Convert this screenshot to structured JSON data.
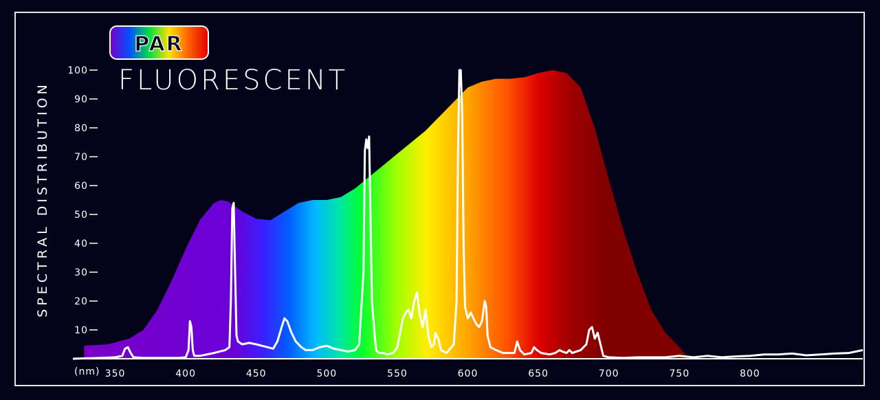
{
  "chart_data": {
    "type": "area",
    "badge": "PAR",
    "title": "FLUORESCENT",
    "ylabel": "SPECTRAL DISTRIBUTION",
    "xunit_label": "(nm)",
    "xlim": [
      320,
      880
    ],
    "ylim": [
      0,
      100
    ],
    "x_ticks": [
      350,
      400,
      450,
      500,
      550,
      600,
      650,
      700,
      750,
      800
    ],
    "y_ticks": [
      10,
      20,
      30,
      40,
      50,
      60,
      70,
      80,
      90,
      100
    ],
    "series": [
      {
        "kind": "area",
        "points": [
          [
            328,
            4.5
          ],
          [
            345,
            5
          ],
          [
            360,
            7
          ],
          [
            370,
            10
          ],
          [
            380,
            17
          ],
          [
            390,
            27
          ],
          [
            400,
            38
          ],
          [
            410,
            48
          ],
          [
            420,
            54
          ],
          [
            425,
            55
          ],
          [
            430,
            54.5
          ],
          [
            440,
            51
          ],
          [
            450,
            48.5
          ],
          [
            460,
            48
          ],
          [
            470,
            51
          ],
          [
            480,
            54
          ],
          [
            490,
            55
          ],
          [
            500,
            55
          ],
          [
            510,
            56
          ],
          [
            520,
            59
          ],
          [
            530,
            63
          ],
          [
            540,
            67
          ],
          [
            550,
            71
          ],
          [
            560,
            75
          ],
          [
            570,
            79
          ],
          [
            580,
            84
          ],
          [
            590,
            89
          ],
          [
            600,
            94
          ],
          [
            610,
            96
          ],
          [
            620,
            97
          ],
          [
            630,
            97
          ],
          [
            640,
            97.5
          ],
          [
            650,
            99
          ],
          [
            660,
            100
          ],
          [
            670,
            99
          ],
          [
            680,
            94
          ],
          [
            690,
            80
          ],
          [
            700,
            62
          ],
          [
            710,
            45
          ],
          [
            720,
            30
          ],
          [
            730,
            17
          ],
          [
            740,
            9
          ],
          [
            750,
            4
          ],
          [
            755,
            1
          ],
          [
            760,
            0
          ]
        ]
      },
      {
        "kind": "line",
        "points": [
          [
            320,
            0
          ],
          [
            340,
            0.3
          ],
          [
            350,
            0.5
          ],
          [
            355,
            1
          ],
          [
            357,
            3.5
          ],
          [
            359,
            4
          ],
          [
            361,
            2
          ],
          [
            363,
            0.5
          ],
          [
            370,
            0.3
          ],
          [
            395,
            0.3
          ],
          [
            400,
            0.5
          ],
          [
            402,
            3
          ],
          [
            403,
            13
          ],
          [
            404,
            11
          ],
          [
            405,
            3
          ],
          [
            406,
            1
          ],
          [
            410,
            1
          ],
          [
            420,
            2
          ],
          [
            428,
            3
          ],
          [
            431,
            4
          ],
          [
            432,
            20
          ],
          [
            433,
            52
          ],
          [
            434,
            54
          ],
          [
            435,
            30
          ],
          [
            436,
            8
          ],
          [
            437,
            6
          ],
          [
            440,
            5
          ],
          [
            445,
            5.5
          ],
          [
            450,
            5
          ],
          [
            458,
            4
          ],
          [
            462,
            3.5
          ],
          [
            465,
            6
          ],
          [
            468,
            11
          ],
          [
            470,
            14
          ],
          [
            472,
            13
          ],
          [
            475,
            9
          ],
          [
            478,
            6
          ],
          [
            482,
            4
          ],
          [
            485,
            3
          ],
          [
            490,
            3
          ],
          [
            495,
            4
          ],
          [
            500,
            4.5
          ],
          [
            505,
            3.5
          ],
          [
            510,
            3
          ],
          [
            515,
            2.5
          ],
          [
            520,
            3
          ],
          [
            523,
            5
          ],
          [
            526,
            30
          ],
          [
            527,
            72
          ],
          [
            528,
            76
          ],
          [
            529,
            73
          ],
          [
            530,
            77
          ],
          [
            531,
            50
          ],
          [
            532,
            20
          ],
          [
            533,
            14
          ],
          [
            534,
            8
          ],
          [
            535,
            3
          ],
          [
            537,
            2
          ],
          [
            540,
            2
          ],
          [
            543,
            1.5
          ],
          [
            547,
            2
          ],
          [
            550,
            4
          ],
          [
            552,
            9
          ],
          [
            554,
            14
          ],
          [
            556,
            16
          ],
          [
            558,
            17
          ],
          [
            560,
            14
          ],
          [
            562,
            20
          ],
          [
            564,
            23
          ],
          [
            566,
            15
          ],
          [
            568,
            11
          ],
          [
            570,
            17
          ],
          [
            572,
            8
          ],
          [
            574,
            4
          ],
          [
            576,
            5
          ],
          [
            577,
            9
          ],
          [
            579,
            7
          ],
          [
            581,
            3
          ],
          [
            585,
            2
          ],
          [
            590,
            5
          ],
          [
            592,
            20
          ],
          [
            593,
            70
          ],
          [
            594,
            100
          ],
          [
            595,
            100
          ],
          [
            596,
            85
          ],
          [
            597,
            40
          ],
          [
            598,
            18
          ],
          [
            600,
            14
          ],
          [
            602,
            16
          ],
          [
            604,
            14
          ],
          [
            606,
            12
          ],
          [
            608,
            11
          ],
          [
            610,
            13
          ],
          [
            612,
            20
          ],
          [
            613,
            18
          ],
          [
            614,
            8
          ],
          [
            616,
            4
          ],
          [
            620,
            3
          ],
          [
            625,
            2
          ],
          [
            630,
            2
          ],
          [
            633,
            2
          ],
          [
            635,
            6
          ],
          [
            637,
            3
          ],
          [
            640,
            1.5
          ],
          [
            645,
            2
          ],
          [
            647,
            4
          ],
          [
            649,
            3
          ],
          [
            652,
            2
          ],
          [
            658,
            1.5
          ],
          [
            662,
            2
          ],
          [
            665,
            3
          ],
          [
            667,
            2.5
          ],
          [
            670,
            2
          ],
          [
            672,
            3
          ],
          [
            674,
            2
          ],
          [
            680,
            3
          ],
          [
            684,
            5
          ],
          [
            686,
            10
          ],
          [
            688,
            11
          ],
          [
            690,
            7
          ],
          [
            692,
            9
          ],
          [
            694,
            5
          ],
          [
            696,
            1
          ],
          [
            700,
            0.5
          ],
          [
            710,
            0.3
          ],
          [
            720,
            0.5
          ],
          [
            740,
            0.5
          ],
          [
            750,
            1
          ],
          [
            760,
            0.5
          ],
          [
            770,
            1
          ],
          [
            780,
            0.5
          ],
          [
            790,
            0.8
          ],
          [
            800,
            1
          ],
          [
            810,
            1.5
          ],
          [
            820,
            1.5
          ],
          [
            830,
            1.8
          ],
          [
            840,
            1.2
          ],
          [
            850,
            1.5
          ],
          [
            860,
            1.8
          ],
          [
            870,
            2
          ],
          [
            875,
            2.5
          ],
          [
            880,
            3
          ]
        ]
      }
    ]
  }
}
